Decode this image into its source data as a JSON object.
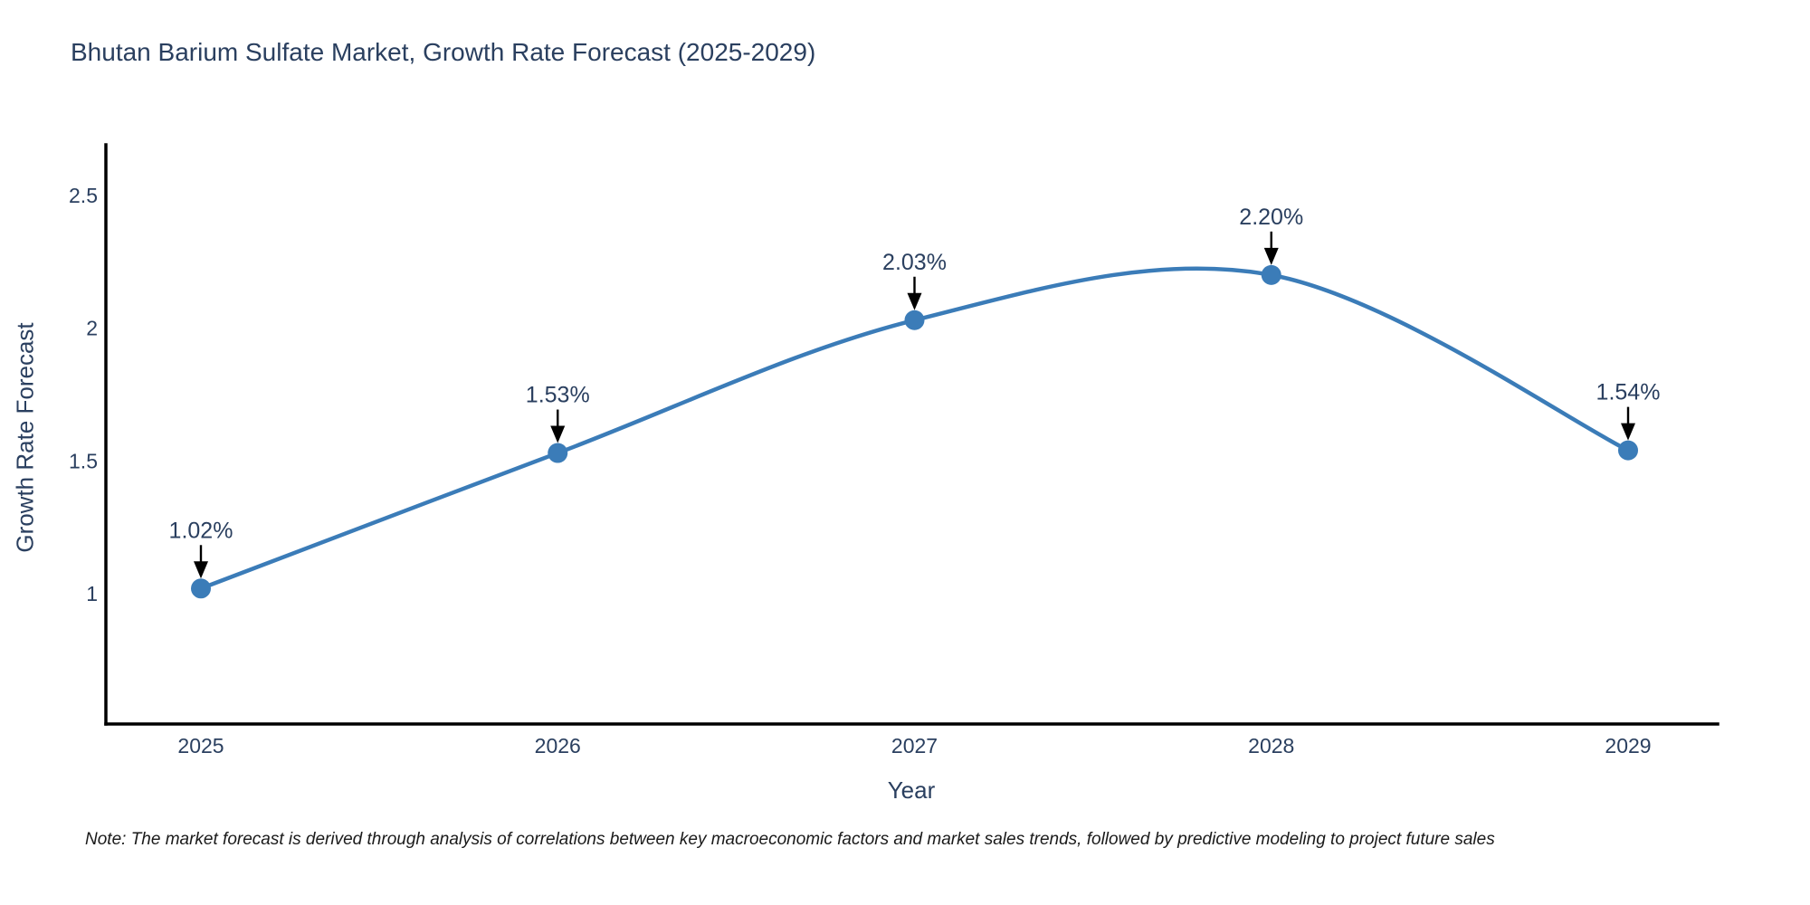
{
  "chart_data": {
    "type": "line",
    "title": "Bhutan Barium Sulfate Market, Growth Rate Forecast (2025-2029)",
    "xlabel": "Year",
    "ylabel": "Growth Rate Forecast",
    "categories": [
      "2025",
      "2026",
      "2027",
      "2028",
      "2029"
    ],
    "series": [
      {
        "name": "Growth Rate Forecast",
        "values": [
          1.02,
          1.53,
          2.03,
          2.2,
          1.54
        ],
        "point_labels": [
          "1.02%",
          "1.53%",
          "2.03%",
          "2.20%",
          "1.54%"
        ]
      }
    ],
    "yticks": [
      "1",
      "1.5",
      "2",
      "2.5"
    ],
    "ytick_values": [
      1,
      1.5,
      2,
      2.5
    ],
    "ylim": [
      0.51,
      2.69
    ],
    "grid": false,
    "legend_position": "none",
    "line_shape": "spline",
    "annotations": "arrow-down-to-point",
    "colors": {
      "line": "#3b7cb8",
      "marker": "#3b7cb8",
      "axis": "#000000",
      "arrow": "#000000",
      "tick_text": "#2a3f5f",
      "title_text": "#2a3f5f",
      "background": "#ffffff"
    }
  },
  "note": {
    "text": "Note: The market forecast is derived through analysis of correlations between key macroeconomic factors and market sales trends, followed by predictive modeling to project future sales"
  }
}
